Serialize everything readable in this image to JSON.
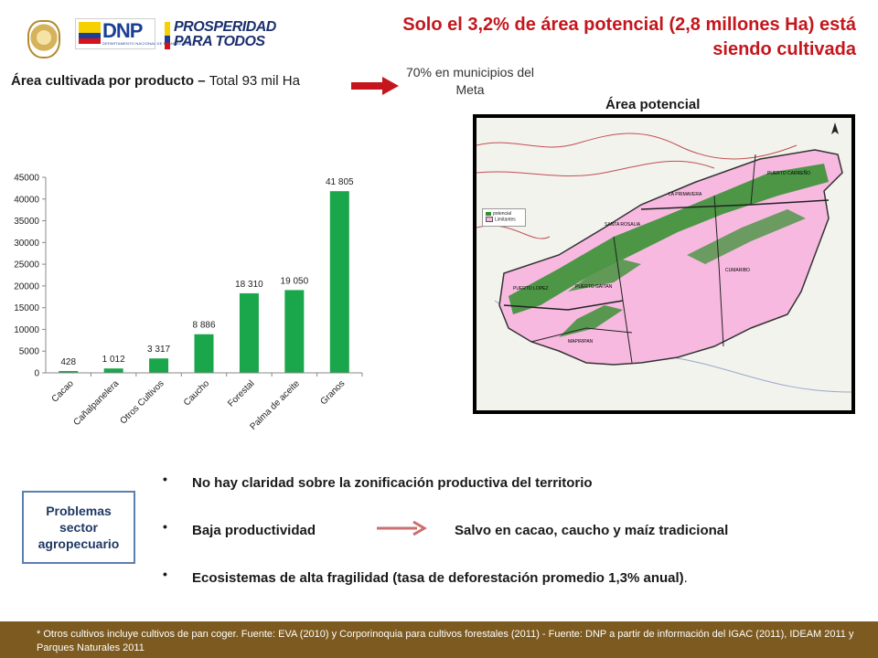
{
  "header": {
    "title": "Solo el 3,2% de área potencial (2,8 millones Ha) está siendo cultivada",
    "logos": {
      "dnp": "DNP",
      "dnp_sub": "DEPARTAMENTO NACIONAL DE PLANEACIÓN",
      "prosperidad_line1": "PROSPERIDAD",
      "prosperidad_line2": "PARA TODOS"
    }
  },
  "left": {
    "subtitle_bold": "Área cultivada por producto – ",
    "subtitle_normal": "Total 93 mil Ha",
    "note": "70% en municipios del Meta"
  },
  "chart_data": {
    "type": "bar",
    "categories": [
      "Cacao",
      "Cañalpanelera",
      "Otros Cultivos",
      "Caucho",
      "Forestal",
      "Palma de aceite",
      "Granos"
    ],
    "values": [
      428,
      1012,
      3317,
      8886,
      18310,
      19050,
      41805
    ],
    "data_labels": [
      "428",
      "1 012",
      "3 317",
      "8 886",
      "18 310",
      "19 050",
      "41 805"
    ],
    "yticks": [
      "0",
      "5000",
      "10000",
      "15000",
      "20000",
      "25000",
      "30000",
      "35000",
      "40000",
      "45000"
    ],
    "ylim": [
      0,
      45000
    ],
    "bar_color": "#1aa64a",
    "title": "",
    "xlabel": "",
    "ylabel": ""
  },
  "map": {
    "title": "Área potencial",
    "legend": [
      "potencial",
      "Limitantes"
    ],
    "labels": [
      "PUERTO CARREÑO",
      "LA PRIMAVERA",
      "SANTA ROSALIA",
      "CUMARIBO",
      "PUERTO LOPEZ",
      "PUERTO GAITAN",
      "MAPIRIPAN"
    ],
    "colors": {
      "potential": "#2f8f2a",
      "region": "#f7b9e0"
    }
  },
  "problems": {
    "box_label": "Problemas sector agropecuario",
    "bullets": [
      "No hay claridad sobre la zonificación productiva del territorio",
      "Baja productividad",
      "Ecosistemas de alta fragilidad (tasa de deforestación promedio 1,3% anual)"
    ],
    "bullet3_tail": ".",
    "exception": "Salvo en cacao, caucho y maíz tradicional"
  },
  "footer": {
    "text": "* Otros cultivos incluye cultivos de pan coger. Fuente: EVA (2010) y Corporinoquia para cultivos forestales (2011) - Fuente: DNP a partir de información del IGAC (2011), IDEAM 2011 y Parques Naturales 2011"
  },
  "colors": {
    "title": "#c4161c",
    "footer": "#7d5a1f",
    "box_border": "#5b7fb4",
    "box_text": "#1f3864"
  }
}
